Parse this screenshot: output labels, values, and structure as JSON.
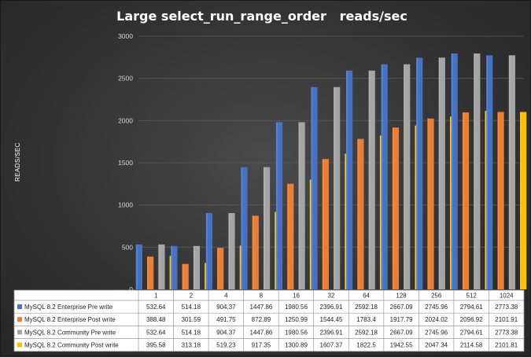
{
  "chart_data": {
    "type": "bar",
    "title": "Large select_run_range_order   reads/sec",
    "ylabel": "READS/SEC",
    "ylim": [
      0,
      3000
    ],
    "yticks": [
      0,
      500,
      1000,
      1500,
      2000,
      2500,
      3000
    ],
    "grid": true,
    "legend": "data-table-left",
    "categories": [
      "1",
      "2",
      "4",
      "8",
      "16",
      "32",
      "64",
      "128",
      "256",
      "512",
      "1024"
    ],
    "series": [
      {
        "name": "MySQL 8.2 Enterprise Pre write",
        "color": "#4472C4",
        "values": [
          532.64,
          514.18,
          904.37,
          1447.86,
          1980.56,
          2396.91,
          2592.18,
          2667.09,
          2745.96,
          2794.61,
          2773.38
        ],
        "labels": [
          "532.64",
          "514.18",
          "904.37",
          "1447.86",
          "1980.56",
          "2396.91",
          "2592.18",
          "2667.09",
          "2745.96",
          "2794.61",
          "2773.38"
        ]
      },
      {
        "name": "MySQL 8.2 Enterprise Post write",
        "color": "#ED7D31",
        "values": [
          388.48,
          301.59,
          491.75,
          872.89,
          1250.99,
          1544.45,
          1783.4,
          1917.79,
          2024.02,
          2096.92,
          2101.91
        ],
        "labels": [
          "388.48",
          "301.59",
          "491.75",
          "872.89",
          "1250.99",
          "1544.45",
          "1783.4",
          "1917.79",
          "2024.02",
          "2096.92",
          "2101.91"
        ]
      },
      {
        "name": "MySQL 8.2 Community Pre write",
        "color": "#A5A5A5",
        "values": [
          532.64,
          514.18,
          904.37,
          1447.86,
          1980.56,
          2396.91,
          2592.18,
          2667.09,
          2745.96,
          2794.61,
          2773.38
        ],
        "labels": [
          "532.64",
          "514.18",
          "904.37",
          "1447.86",
          "1980.56",
          "2396.91",
          "2592.18",
          "2667.09",
          "2745.96",
          "2794.61",
          "2773.38"
        ]
      },
      {
        "name": "MySQL 8.2 Community Post write",
        "color": "#FFC000",
        "values": [
          395.58,
          313.18,
          519.23,
          917.35,
          1300.89,
          1607.37,
          1822.5,
          1942.55,
          2047.34,
          2114.58,
          2101.81
        ],
        "labels": [
          "395.58",
          "313.18",
          "519.23",
          "917.35",
          "1300.89",
          "1607.37",
          "1822.5",
          "1942.55",
          "2047.34",
          "2114.58",
          "2101.81"
        ]
      }
    ]
  }
}
